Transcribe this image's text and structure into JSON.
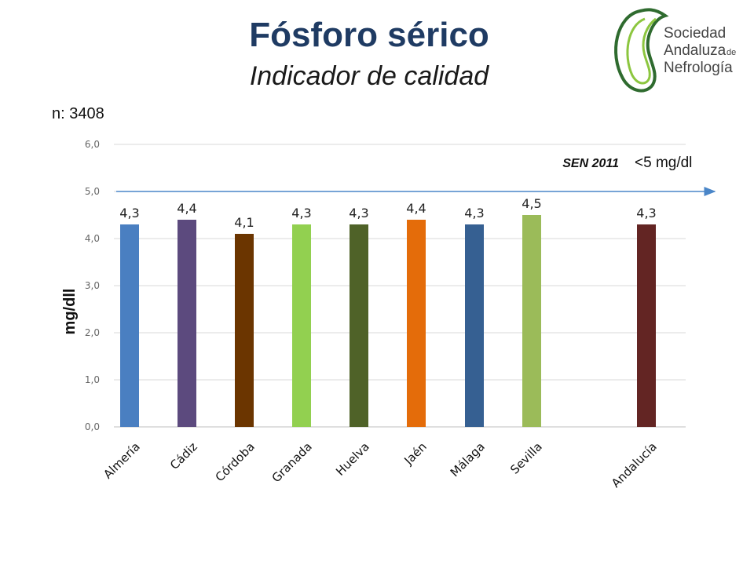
{
  "header": {
    "title": "Fósforo sérico",
    "subtitle": "Indicador de calidad",
    "n_count": "n: 3408"
  },
  "logo": {
    "line1": "Sociedad",
    "line2": "Andaluza",
    "line2_suffix": "de",
    "line3": "Nefrología",
    "colors": {
      "dark_green": "#2f6b2f",
      "light_green": "#8cc63f",
      "text": "#444444"
    }
  },
  "chart_data": {
    "type": "bar",
    "title": "",
    "xlabel": "",
    "ylabel": "mg/dll",
    "ylim": [
      0,
      6
    ],
    "yticks": [
      "0,0",
      "1,0",
      "2,0",
      "3,0",
      "4,0",
      "5,0",
      "6,0"
    ],
    "grid": true,
    "categories": [
      "Almería",
      "Cádiz",
      "Córdoba",
      "Granada",
      "Huelva",
      "Jaén",
      "Málaga",
      "Sevilla",
      "Andalucía"
    ],
    "values": [
      4.3,
      4.4,
      4.1,
      4.3,
      4.3,
      4.4,
      4.3,
      4.5,
      4.3
    ],
    "data_labels": [
      "4,3",
      "4,4",
      "4,1",
      "4,3",
      "4,3",
      "4,4",
      "4,3",
      "4,5",
      "4,3"
    ],
    "colors": [
      "#4a7fc1",
      "#5c4a7e",
      "#6b3500",
      "#92d050",
      "#4f6228",
      "#e46c0a",
      "#366092",
      "#9bbb59",
      "#632523"
    ],
    "reference": {
      "value": 5,
      "name": "SEN 2011",
      "label": "<5 mg/dl",
      "color": "#4a86c8"
    }
  }
}
